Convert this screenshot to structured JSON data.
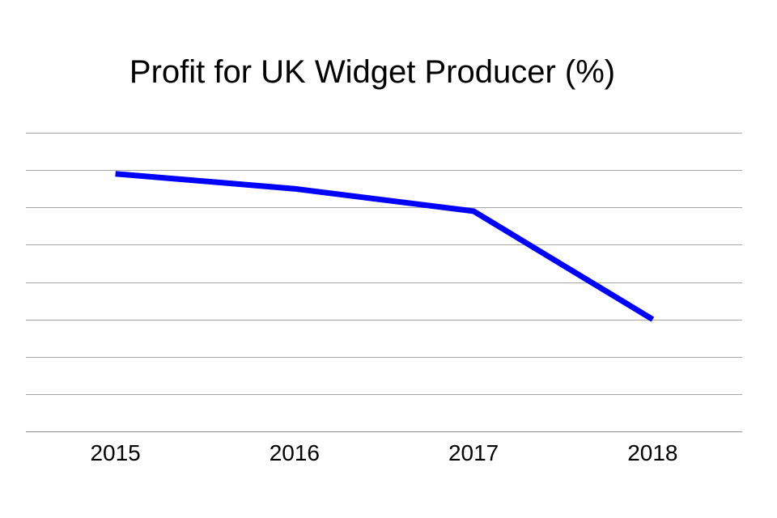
{
  "chart_data": {
    "type": "line",
    "title": "Profit for UK Widget Producer (%)",
    "xlabel": "",
    "ylabel": "",
    "categories": [
      "2015",
      "2016",
      "2017",
      "2018"
    ],
    "series": [
      {
        "values": [
          6.9,
          6.5,
          5.9,
          3.0
        ]
      }
    ],
    "ylim": [
      0,
      8
    ],
    "y_gridline_step": 1,
    "grid": true,
    "y_tick_labels_shown": false,
    "legend": "none",
    "colors": {
      "series": "#0000ff",
      "grid": "#a6a6a6",
      "axis": "#8c8c8c",
      "text": "#000000",
      "background": "#ffffff"
    }
  }
}
